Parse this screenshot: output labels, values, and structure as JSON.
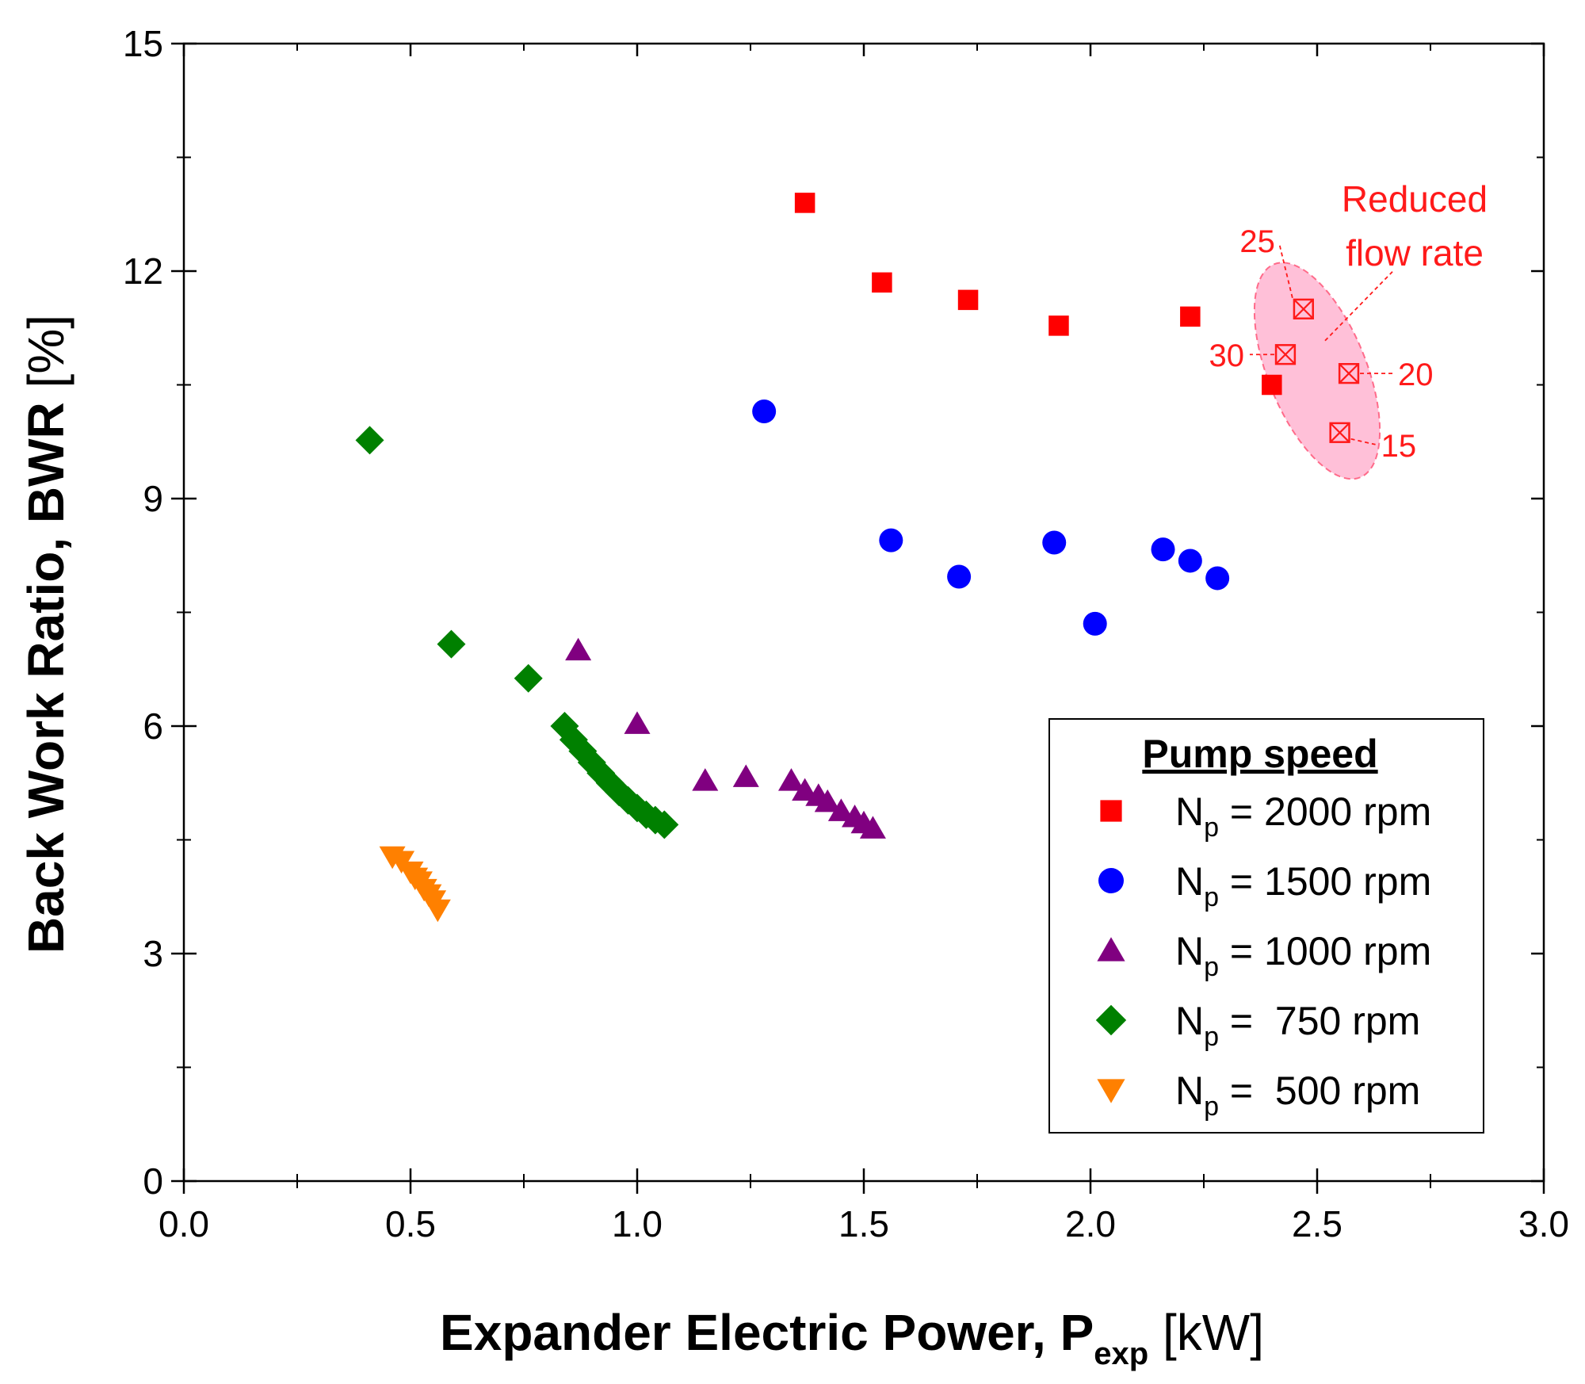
{
  "chart_data": {
    "type": "scatter",
    "title": "",
    "xlabel": {
      "main": "Expander Electric Power, P",
      "sub": "exp",
      "unit": " [kW]"
    },
    "ylabel": {
      "main": "Back Work Ratio, BWR",
      "unit": " [%]"
    },
    "xlim": [
      0,
      3.0
    ],
    "ylim": [
      0,
      15
    ],
    "x_ticks": [
      0.0,
      0.5,
      1.0,
      1.5,
      2.0,
      2.5,
      3.0
    ],
    "x_tick_labels": [
      "0.0",
      "0.5",
      "1.0",
      "1.5",
      "2.0",
      "2.5",
      "3.0"
    ],
    "y_ticks": [
      0,
      3,
      6,
      9,
      12,
      15
    ],
    "y_tick_labels": [
      "0",
      "3",
      "6",
      "9",
      "12",
      "15"
    ],
    "grid": false,
    "legend": {
      "title": "Pump speed",
      "position": "bottom-right",
      "entries": [
        {
          "prefix": "N",
          "sub": "p",
          "suffix": " = 2000 rpm"
        },
        {
          "prefix": "N",
          "sub": "p",
          "suffix": " = 1500 rpm"
        },
        {
          "prefix": "N",
          "sub": "p",
          "suffix": " = 1000 rpm"
        },
        {
          "prefix": "N",
          "sub": "p",
          "suffix": " =  750 rpm"
        },
        {
          "prefix": "N",
          "sub": "p",
          "suffix": " =  500 rpm"
        }
      ]
    },
    "series": [
      {
        "name": "Np = 2000 rpm",
        "marker": "square",
        "color": "#ff0000",
        "points": [
          [
            1.37,
            12.9
          ],
          [
            1.54,
            11.85
          ],
          [
            1.73,
            11.62
          ],
          [
            1.93,
            11.28
          ],
          [
            2.22,
            11.4
          ],
          [
            2.4,
            10.5
          ]
        ]
      },
      {
        "name": "Np = 1500 rpm",
        "marker": "circle",
        "color": "#0000ff",
        "points": [
          [
            1.28,
            10.15
          ],
          [
            1.56,
            8.45
          ],
          [
            1.71,
            7.97
          ],
          [
            1.92,
            8.42
          ],
          [
            2.01,
            7.35
          ],
          [
            2.16,
            8.33
          ],
          [
            2.22,
            8.18
          ],
          [
            2.28,
            7.95
          ]
        ]
      },
      {
        "name": "Np = 1000 rpm",
        "marker": "triangle-up",
        "color": "#800080",
        "points": [
          [
            0.87,
            7.0
          ],
          [
            1.0,
            6.03
          ],
          [
            1.15,
            5.28
          ],
          [
            1.24,
            5.33
          ],
          [
            1.34,
            5.28
          ],
          [
            1.37,
            5.15
          ],
          [
            1.4,
            5.08
          ],
          [
            1.42,
            5.0
          ],
          [
            1.45,
            4.88
          ],
          [
            1.48,
            4.8
          ],
          [
            1.5,
            4.72
          ],
          [
            1.52,
            4.65
          ]
        ]
      },
      {
        "name": "Np = 750 rpm",
        "marker": "diamond",
        "color": "#008000",
        "points": [
          [
            0.41,
            9.77
          ],
          [
            0.59,
            7.08
          ],
          [
            0.76,
            6.63
          ],
          [
            0.84,
            6.0
          ],
          [
            0.86,
            5.82
          ],
          [
            0.88,
            5.67
          ],
          [
            0.9,
            5.52
          ],
          [
            0.92,
            5.38
          ],
          [
            0.94,
            5.25
          ],
          [
            0.96,
            5.13
          ],
          [
            0.98,
            5.02
          ],
          [
            1.0,
            4.92
          ],
          [
            1.02,
            4.83
          ],
          [
            1.04,
            4.76
          ],
          [
            1.06,
            4.7
          ]
        ]
      },
      {
        "name": "Np = 500 rpm",
        "marker": "triangle-down",
        "color": "#ff8000",
        "points": [
          [
            0.46,
            4.28
          ],
          [
            0.48,
            4.22
          ],
          [
            0.5,
            4.08
          ],
          [
            0.51,
            4.0
          ],
          [
            0.52,
            3.95
          ],
          [
            0.53,
            3.85
          ],
          [
            0.54,
            3.78
          ],
          [
            0.55,
            3.7
          ],
          [
            0.56,
            3.58
          ]
        ]
      },
      {
        "name": "Reduced flow rate",
        "marker": "square-crossed",
        "color": "#ff1a1a",
        "points": [
          [
            2.47,
            11.5
          ],
          [
            2.43,
            10.9
          ],
          [
            2.57,
            10.65
          ],
          [
            2.55,
            9.87
          ]
        ],
        "point_labels": [
          "25",
          "30",
          "20",
          "15"
        ]
      }
    ],
    "annotations": {
      "region_label_line1": "Reduced",
      "region_label_line2": "flow rate",
      "region_fill": "#ffc0d8",
      "region_stroke": "#ff6b8a"
    }
  }
}
